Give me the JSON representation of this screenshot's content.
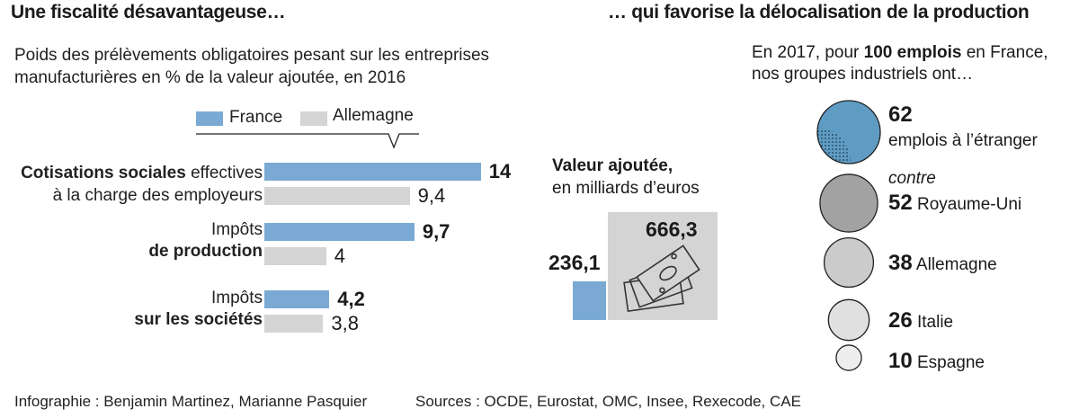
{
  "left": {
    "title": "Une fiscalité désavantageuse…",
    "subtitle_line1": "Poids des prélèvements  obligatoires pesant sur les entreprises",
    "subtitle_line2": "manufacturières en % de la valeur ajoutée, en 2016"
  },
  "right": {
    "title": "… qui favorise la délocalisation de la production",
    "intro_pre": "En 2017, pour ",
    "intro_bold": "100 emplois",
    "intro_post": " en France,",
    "intro_line2": "nos groupes industriels ont…"
  },
  "middle": {
    "title_line1": "Valeur ajoutée,",
    "title_line2": "en milliards d’euros"
  },
  "footer": {
    "credit": "Infographie : Benjamin Martinez, Marianne Pasquier",
    "sources": "Sources : OCDE, Eurostat, OMC, Insee, Rexecode, CAE"
  },
  "colors": {
    "france": "#7aaad3",
    "allemagne": "#d4d4d4"
  },
  "chart_data": [
    {
      "type": "bar",
      "orientation": "horizontal",
      "legend": [
        "France",
        "Allemagne"
      ],
      "categories": [
        {
          "bold_a": "Cotisations sociales",
          "text_a": " effectives",
          "line2": "à la charge des employeurs",
          "line2_bold": false
        },
        {
          "line1": "Impôts",
          "line2": "de production",
          "line2_bold": true
        },
        {
          "line1": "Impôts",
          "line2": "sur les sociétés",
          "line2_bold": true
        }
      ],
      "series": [
        {
          "name": "France",
          "values": [
            14,
            9.7,
            4.2
          ],
          "labels": [
            "14",
            "9,7",
            "4,2"
          ]
        },
        {
          "name": "Allemagne",
          "values": [
            9.4,
            4,
            3.8
          ],
          "labels": [
            "9,4",
            "4",
            "3,8"
          ]
        }
      ]
    },
    {
      "type": "bar",
      "title": "Valeur ajoutée, en milliards d’euros",
      "categories": [
        "France",
        "Allemagne"
      ],
      "values": [
        236.1,
        666.3
      ],
      "labels": [
        "236,1",
        "666,3"
      ]
    },
    {
      "type": "bubble",
      "items": [
        {
          "value": 62,
          "label": "emplois à l’étranger",
          "color": "#5f9cc4"
        },
        {
          "value": 52,
          "prefix": "contre",
          "label": "Royaume-Uni",
          "color": "#a2a2a2"
        },
        {
          "value": 38,
          "label": "Allemagne",
          "color": "#cbcbcb"
        },
        {
          "value": 26,
          "label": "Italie",
          "color": "#e0e0e0"
        },
        {
          "value": 10,
          "label": "Espagne",
          "color": "#ededed"
        }
      ]
    }
  ]
}
